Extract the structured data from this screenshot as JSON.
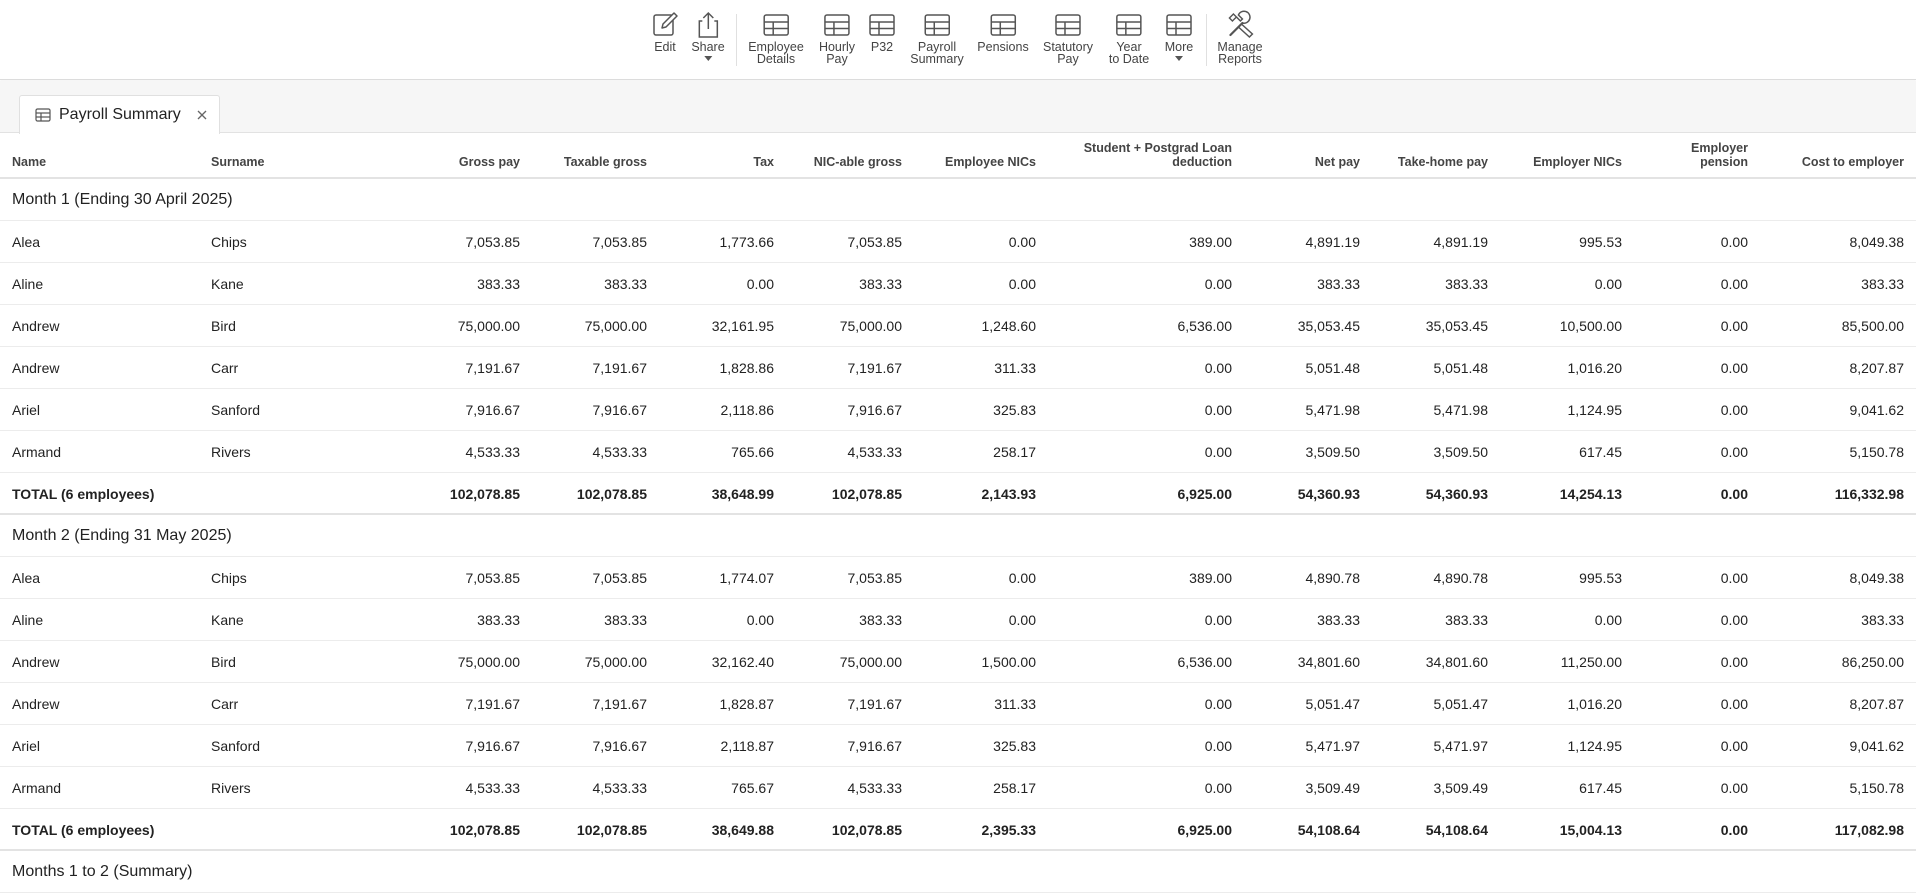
{
  "toolbar": {
    "items": [
      {
        "label": "Edit",
        "icon": "pencil-icon"
      },
      {
        "label": "Share",
        "icon": "share-icon"
      },
      {
        "label": "Employee\nDetails",
        "icon": "table-icon"
      },
      {
        "label": "Hourly\nPay",
        "icon": "table-icon"
      },
      {
        "label": "P32",
        "icon": "table-icon"
      },
      {
        "label": "Payroll\nSummary",
        "icon": "table-icon"
      },
      {
        "label": "Pensions",
        "icon": "table-icon"
      },
      {
        "label": "Statutory\nPay",
        "icon": "table-icon"
      },
      {
        "label": "Year\nto Date",
        "icon": "table-icon"
      },
      {
        "label": "More",
        "icon": "table-icon"
      },
      {
        "label": "Manage\nReports",
        "icon": "tools-icon"
      }
    ]
  },
  "tab": {
    "label": "Payroll Summary"
  },
  "columns": [
    "Name",
    "Surname",
    "Gross pay",
    "Taxable gross",
    "Tax",
    "NIC-able gross",
    "Employee NICs",
    "Student + Postgrad Loan\ndeduction",
    "Net pay",
    "Take-home pay",
    "Employer NICs",
    "Employer\npension",
    "Cost to employer"
  ],
  "groups": [
    {
      "title": "Month 1 (Ending 30 April 2025)",
      "rows": [
        [
          "Alea",
          "Chips",
          "7,053.85",
          "7,053.85",
          "1,773.66",
          "7,053.85",
          "0.00",
          "389.00",
          "4,891.19",
          "4,891.19",
          "995.53",
          "0.00",
          "8,049.38"
        ],
        [
          "Aline",
          "Kane",
          "383.33",
          "383.33",
          "0.00",
          "383.33",
          "0.00",
          "0.00",
          "383.33",
          "383.33",
          "0.00",
          "0.00",
          "383.33"
        ],
        [
          "Andrew",
          "Bird",
          "75,000.00",
          "75,000.00",
          "32,161.95",
          "75,000.00",
          "1,248.60",
          "6,536.00",
          "35,053.45",
          "35,053.45",
          "10,500.00",
          "0.00",
          "85,500.00"
        ],
        [
          "Andrew",
          "Carr",
          "7,191.67",
          "7,191.67",
          "1,828.86",
          "7,191.67",
          "311.33",
          "0.00",
          "5,051.48",
          "5,051.48",
          "1,016.20",
          "0.00",
          "8,207.87"
        ],
        [
          "Ariel",
          "Sanford",
          "7,916.67",
          "7,916.67",
          "2,118.86",
          "7,916.67",
          "325.83",
          "0.00",
          "5,471.98",
          "5,471.98",
          "1,124.95",
          "0.00",
          "9,041.62"
        ],
        [
          "Armand",
          "Rivers",
          "4,533.33",
          "4,533.33",
          "765.66",
          "4,533.33",
          "258.17",
          "0.00",
          "3,509.50",
          "3,509.50",
          "617.45",
          "0.00",
          "5,150.78"
        ]
      ],
      "total": [
        "TOTAL (6 employees)",
        "",
        "102,078.85",
        "102,078.85",
        "38,648.99",
        "102,078.85",
        "2,143.93",
        "6,925.00",
        "54,360.93",
        "54,360.93",
        "14,254.13",
        "0.00",
        "116,332.98"
      ]
    },
    {
      "title": "Month 2 (Ending 31 May 2025)",
      "rows": [
        [
          "Alea",
          "Chips",
          "7,053.85",
          "7,053.85",
          "1,774.07",
          "7,053.85",
          "0.00",
          "389.00",
          "4,890.78",
          "4,890.78",
          "995.53",
          "0.00",
          "8,049.38"
        ],
        [
          "Aline",
          "Kane",
          "383.33",
          "383.33",
          "0.00",
          "383.33",
          "0.00",
          "0.00",
          "383.33",
          "383.33",
          "0.00",
          "0.00",
          "383.33"
        ],
        [
          "Andrew",
          "Bird",
          "75,000.00",
          "75,000.00",
          "32,162.40",
          "75,000.00",
          "1,500.00",
          "6,536.00",
          "34,801.60",
          "34,801.60",
          "11,250.00",
          "0.00",
          "86,250.00"
        ],
        [
          "Andrew",
          "Carr",
          "7,191.67",
          "7,191.67",
          "1,828.87",
          "7,191.67",
          "311.33",
          "0.00",
          "5,051.47",
          "5,051.47",
          "1,016.20",
          "0.00",
          "8,207.87"
        ],
        [
          "Ariel",
          "Sanford",
          "7,916.67",
          "7,916.67",
          "2,118.87",
          "7,916.67",
          "325.83",
          "0.00",
          "5,471.97",
          "5,471.97",
          "1,124.95",
          "0.00",
          "9,041.62"
        ],
        [
          "Armand",
          "Rivers",
          "4,533.33",
          "4,533.33",
          "765.67",
          "4,533.33",
          "258.17",
          "0.00",
          "3,509.49",
          "3,509.49",
          "617.45",
          "0.00",
          "5,150.78"
        ]
      ],
      "total": [
        "TOTAL (6 employees)",
        "",
        "102,078.85",
        "102,078.85",
        "38,649.88",
        "102,078.85",
        "2,395.33",
        "6,925.00",
        "54,108.64",
        "54,108.64",
        "15,004.13",
        "0.00",
        "117,082.98"
      ]
    },
    {
      "title": "Months 1 to 2 (Summary)",
      "rows": []
    }
  ]
}
